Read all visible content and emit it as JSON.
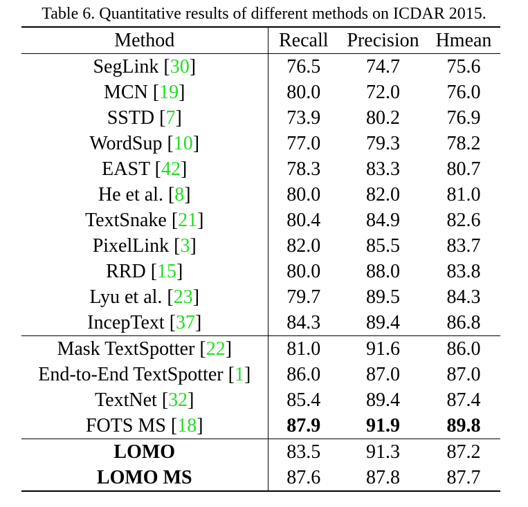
{
  "caption": "Table 6. Quantitative results of different methods on ICDAR 2015.",
  "table": {
    "headers": [
      "Method",
      "Recall",
      "Precision",
      "Hmean"
    ],
    "groups": [
      {
        "rows": [
          {
            "name": "SegLink",
            "ref": "30",
            "recall": "76.5",
            "precision": "74.7",
            "hmean": "75.6"
          },
          {
            "name": "MCN",
            "ref": "19",
            "recall": "80.0",
            "precision": "72.0",
            "hmean": "76.0"
          },
          {
            "name": "SSTD",
            "ref": "7",
            "recall": "73.9",
            "precision": "80.2",
            "hmean": "76.9"
          },
          {
            "name": "WordSup",
            "ref": "10",
            "recall": "77.0",
            "precision": "79.3",
            "hmean": "78.2"
          },
          {
            "name": "EAST",
            "ref": "42",
            "recall": "78.3",
            "precision": "83.3",
            "hmean": "80.7"
          },
          {
            "name": "He et al.",
            "ref": "8",
            "recall": "80.0",
            "precision": "82.0",
            "hmean": "81.0"
          },
          {
            "name": "TextSnake",
            "ref": "21",
            "recall": "80.4",
            "precision": "84.9",
            "hmean": "82.6"
          },
          {
            "name": "PixelLink",
            "ref": "3",
            "recall": "82.0",
            "precision": "85.5",
            "hmean": "83.7"
          },
          {
            "name": "RRD",
            "ref": "15",
            "recall": "80.0",
            "precision": "88.0",
            "hmean": "83.8"
          },
          {
            "name": "Lyu et al.",
            "ref": "23",
            "recall": "79.7",
            "precision": "89.5",
            "hmean": "84.3"
          },
          {
            "name": "IncepText",
            "ref": "37",
            "recall": "84.3",
            "precision": "89.4",
            "hmean": "86.8"
          }
        ]
      },
      {
        "rows": [
          {
            "name": "Mask TextSpotter",
            "ref": "22",
            "recall": "81.0",
            "precision": "91.6",
            "hmean": "86.0"
          },
          {
            "name": "End-to-End TextSpotter",
            "ref": "1",
            "recall": "86.0",
            "precision": "87.0",
            "hmean": "87.0"
          },
          {
            "name": "TextNet",
            "ref": "32",
            "recall": "85.4",
            "precision": "89.4",
            "hmean": "87.4"
          },
          {
            "name": "FOTS MS",
            "ref": "18",
            "recall": "87.9",
            "precision": "91.9",
            "hmean": "89.8",
            "bold_values": true
          }
        ]
      },
      {
        "rows": [
          {
            "name": "LOMO",
            "ref": "",
            "recall": "83.5",
            "precision": "91.3",
            "hmean": "87.2",
            "bold_name": true
          },
          {
            "name": "LOMO MS",
            "ref": "",
            "recall": "87.6",
            "precision": "87.8",
            "hmean": "87.7",
            "bold_name": true
          }
        ]
      }
    ]
  }
}
